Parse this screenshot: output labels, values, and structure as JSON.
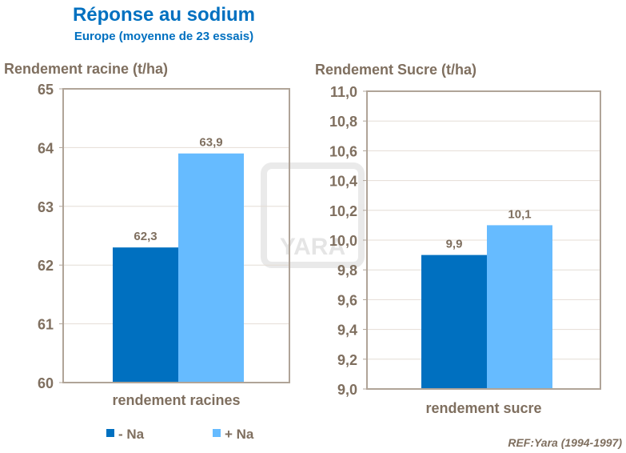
{
  "title": "Réponse au sodium",
  "subtitle": "Europe (moyenne de 23 essais)",
  "reference": "REF:Yara (1994-1997)",
  "watermark": "YARA",
  "colors": {
    "minus_na": "#0070C0",
    "plus_na": "#66BBFF",
    "text": "#7F6F5F",
    "title": "#0070C0"
  },
  "legend": {
    "items": [
      {
        "label": "- Na",
        "color": "#0070C0"
      },
      {
        "label": "+ Na",
        "color": "#66BBFF"
      }
    ],
    "placement": "bottom-left"
  },
  "chart_data": [
    {
      "type": "bar",
      "ylabel": "Rendement racine (t/ha)",
      "categories": [
        "rendement racines"
      ],
      "series": [
        {
          "name": "- Na",
          "values": [
            62.3
          ]
        },
        {
          "name": "+ Na",
          "values": [
            63.9
          ]
        }
      ],
      "data_labels": [
        "62,3",
        "63,9"
      ],
      "ylim": [
        60,
        65
      ],
      "yticks": [
        "60",
        "61",
        "62",
        "63",
        "64",
        "65"
      ],
      "grid": true
    },
    {
      "type": "bar",
      "ylabel": "Rendement Sucre (t/ha)",
      "categories": [
        "rendement sucre"
      ],
      "series": [
        {
          "name": "- Na",
          "values": [
            9.9
          ]
        },
        {
          "name": "+ Na",
          "values": [
            10.1
          ]
        }
      ],
      "data_labels": [
        "9,9",
        "10,1"
      ],
      "ylim": [
        9.0,
        11.0
      ],
      "yticks": [
        "9,0",
        "9,2",
        "9,4",
        "9,6",
        "9,8",
        "10,0",
        "10,2",
        "10,4",
        "10,6",
        "10,8",
        "11,0"
      ],
      "grid": true
    }
  ]
}
